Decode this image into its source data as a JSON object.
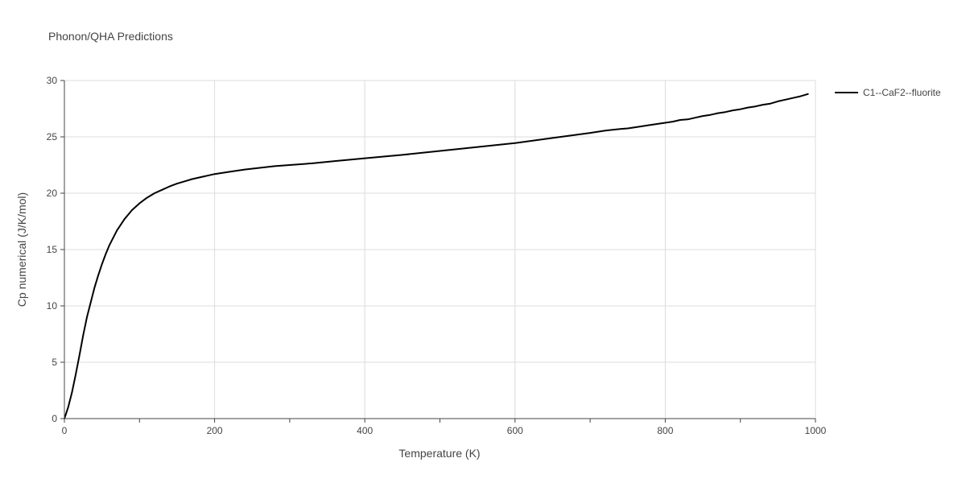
{
  "chart_data": {
    "type": "line",
    "title": "Phonon/QHA Predictions",
    "xlabel": "Temperature (K)",
    "ylabel": "Cp numerical (J/K/mol)",
    "xlim": [
      0,
      1000
    ],
    "ylim": [
      0,
      30
    ],
    "xticks": [
      0,
      200,
      400,
      600,
      800,
      1000
    ],
    "yticks": [
      0,
      5,
      10,
      15,
      20,
      25,
      30
    ],
    "grid": true,
    "legend_position": "top-right",
    "series": [
      {
        "name": "C1--CaF2--fluorite",
        "color": "#000000",
        "x": [
          0,
          5,
          10,
          15,
          20,
          25,
          30,
          35,
          40,
          45,
          50,
          55,
          60,
          70,
          80,
          90,
          100,
          110,
          120,
          130,
          140,
          150,
          160,
          170,
          180,
          190,
          200,
          220,
          240,
          260,
          280,
          300,
          330,
          360,
          400,
          450,
          500,
          550,
          600,
          650,
          700,
          720,
          740,
          750,
          760,
          780,
          800,
          810,
          820,
          830,
          840,
          850,
          860,
          870,
          880,
          890,
          900,
          910,
          920,
          930,
          940,
          950,
          960,
          970,
          980,
          990
        ],
        "y": [
          0,
          1.0,
          2.3,
          3.9,
          5.6,
          7.4,
          9.0,
          10.3,
          11.6,
          12.7,
          13.7,
          14.6,
          15.4,
          16.7,
          17.7,
          18.5,
          19.1,
          19.6,
          20.0,
          20.3,
          20.6,
          20.85,
          21.05,
          21.25,
          21.4,
          21.55,
          21.7,
          21.9,
          22.1,
          22.25,
          22.4,
          22.5,
          22.65,
          22.85,
          23.1,
          23.4,
          23.75,
          24.1,
          24.45,
          24.9,
          25.35,
          25.55,
          25.7,
          25.75,
          25.85,
          26.05,
          26.25,
          26.35,
          26.5,
          26.55,
          26.7,
          26.85,
          26.95,
          27.1,
          27.2,
          27.35,
          27.45,
          27.6,
          27.7,
          27.85,
          27.95,
          28.15,
          28.3,
          28.45,
          28.6,
          28.8
        ]
      }
    ]
  }
}
